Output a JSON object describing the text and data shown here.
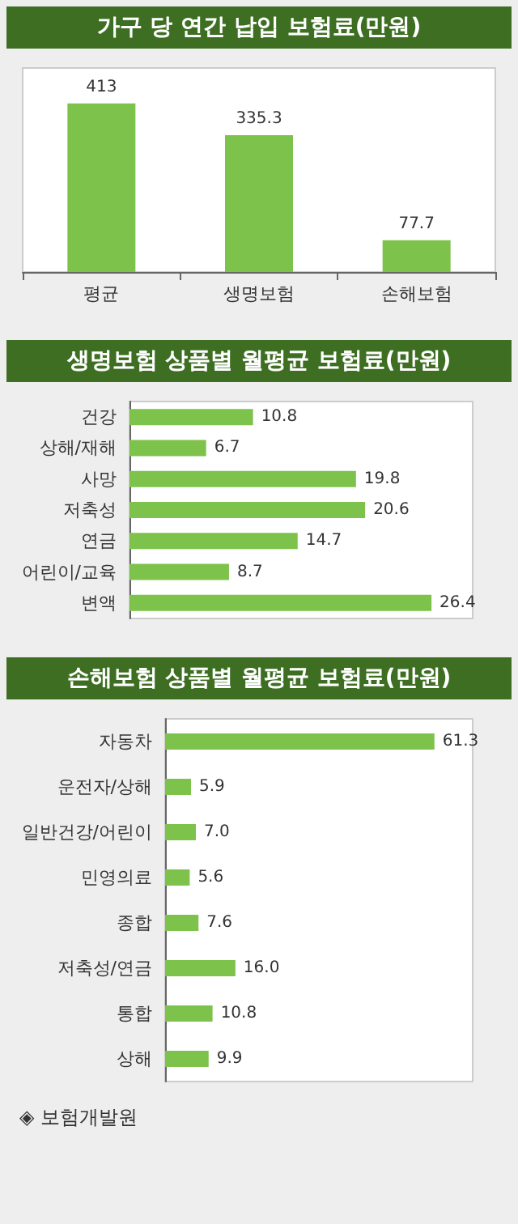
{
  "chart_data": [
    {
      "type": "bar",
      "title": "가구 당 연간 납입 보험료(만원)",
      "categories": [
        "평균",
        "생명보험",
        "손해보험"
      ],
      "values": [
        413,
        335.3,
        77.7
      ],
      "color": "#7dc24b",
      "data_labels": true
    },
    {
      "type": "bar",
      "orientation": "horizontal",
      "title": "생명보험 상품별 월평균 보험료(만원)",
      "categories": [
        "건강",
        "상해/재해",
        "사망",
        "저축성",
        "연금",
        "어린이/교육",
        "변액"
      ],
      "values": [
        10.8,
        6.7,
        19.8,
        20.6,
        14.7,
        8.7,
        26.4
      ],
      "color": "#7dc24b",
      "data_labels": true
    },
    {
      "type": "bar",
      "orientation": "horizontal",
      "title": "손해보험 상품별 월평균 보험료(만원)",
      "categories": [
        "자동차",
        "운전자/상해",
        "일반건강/어린이",
        "민영의료",
        "종합",
        "저축성/연금",
        "통합",
        "상해"
      ],
      "values": [
        61.3,
        5.9,
        7.0,
        5.6,
        7.6,
        16.0,
        10.8,
        9.9
      ],
      "value_labels": [
        "61.3",
        "5.9",
        "7.0",
        "5.6",
        "7.6",
        "16.0",
        "10.8",
        "9.9"
      ],
      "color": "#7dc24b",
      "annotations": [
        "◈ 보험개발원"
      ]
    }
  ]
}
